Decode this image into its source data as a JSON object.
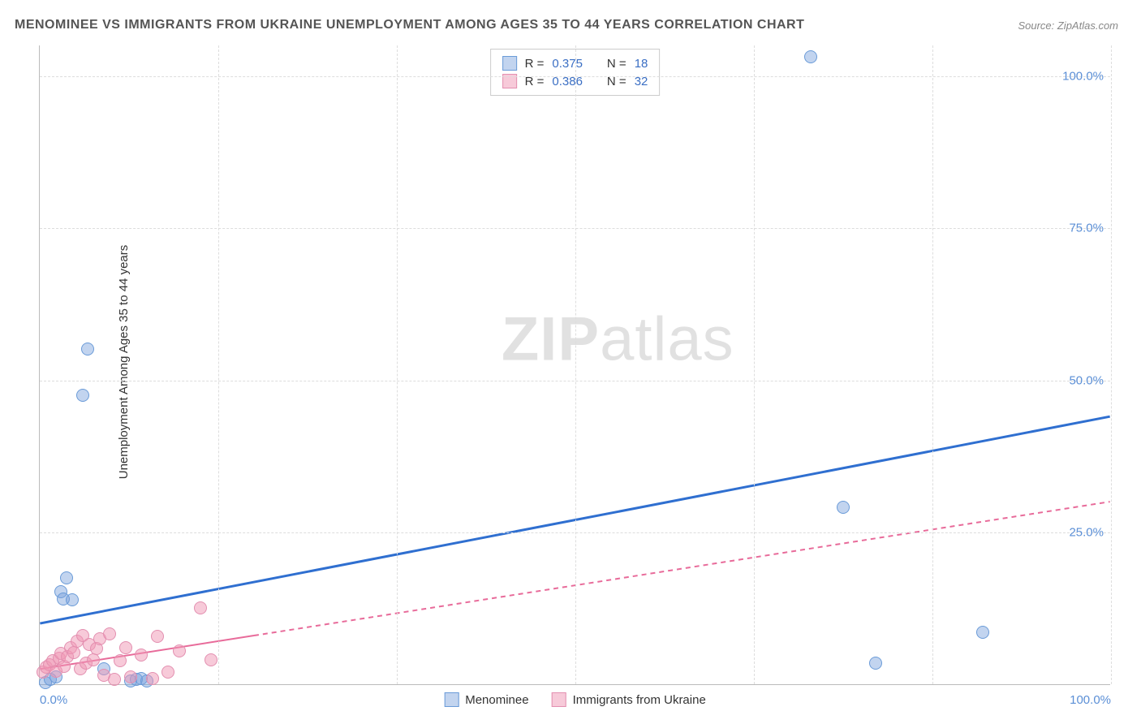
{
  "title": "MENOMINEE VS IMMIGRANTS FROM UKRAINE UNEMPLOYMENT AMONG AGES 35 TO 44 YEARS CORRELATION CHART",
  "source_label": "Source: ZipAtlas.com",
  "y_axis_label": "Unemployment Among Ages 35 to 44 years",
  "watermark_bold": "ZIP",
  "watermark_light": "atlas",
  "chart": {
    "type": "scatter",
    "xlim": [
      0,
      100
    ],
    "ylim": [
      0,
      105
    ],
    "x_ticks": [
      0,
      100
    ],
    "x_tick_labels": [
      "0.0%",
      "100.0%"
    ],
    "y_ticks": [
      25,
      50,
      75,
      100
    ],
    "y_tick_labels": [
      "25.0%",
      "50.0%",
      "75.0%",
      "100.0%"
    ],
    "v_grid_positions": [
      16.67,
      33.33,
      50,
      66.67,
      83.33,
      100
    ],
    "background_color": "#ffffff",
    "grid_color": "#dddddd",
    "axis_color": "#bbbbbb",
    "series": [
      {
        "name": "Menominee",
        "color_fill": "rgba(120,160,220,0.45)",
        "color_stroke": "#6a9bd8",
        "marker_radius": 8,
        "r_value": "0.375",
        "n_value": "18",
        "regression": {
          "x1": 0,
          "y1": 10,
          "x2": 100,
          "y2": 44,
          "color": "#2f6fd0",
          "width": 3,
          "dash": "none",
          "solid_until_x": 100
        },
        "points": [
          [
            0.5,
            0.3
          ],
          [
            1.0,
            0.8
          ],
          [
            1.5,
            1.2
          ],
          [
            2.0,
            15.2
          ],
          [
            2.2,
            14.0
          ],
          [
            2.5,
            17.5
          ],
          [
            3.0,
            13.8
          ],
          [
            4.0,
            47.5
          ],
          [
            4.5,
            55.0
          ],
          [
            6.0,
            2.5
          ],
          [
            8.5,
            0.5
          ],
          [
            9.0,
            0.8
          ],
          [
            9.5,
            1.0
          ],
          [
            10.0,
            0.6
          ],
          [
            72.0,
            103.0
          ],
          [
            75.0,
            29.0
          ],
          [
            78.0,
            3.5
          ],
          [
            88.0,
            8.5
          ]
        ]
      },
      {
        "name": "Immigrants from Ukraine",
        "color_fill": "rgba(240,150,180,0.50)",
        "color_stroke": "#e38fb0",
        "marker_radius": 8,
        "r_value": "0.386",
        "n_value": "32",
        "regression": {
          "x1": 0,
          "y1": 2.5,
          "x2": 100,
          "y2": 30,
          "color": "#e86b9a",
          "width": 2,
          "dash": "6,5",
          "solid_until_x": 20
        },
        "points": [
          [
            0.3,
            2.0
          ],
          [
            0.6,
            2.8
          ],
          [
            0.9,
            3.2
          ],
          [
            1.2,
            3.8
          ],
          [
            1.5,
            2.2
          ],
          [
            1.8,
            4.2
          ],
          [
            2.0,
            5.0
          ],
          [
            2.3,
            3.0
          ],
          [
            2.6,
            4.5
          ],
          [
            2.9,
            6.0
          ],
          [
            3.2,
            5.2
          ],
          [
            3.5,
            7.0
          ],
          [
            3.8,
            2.5
          ],
          [
            4.0,
            8.0
          ],
          [
            4.3,
            3.5
          ],
          [
            4.6,
            6.5
          ],
          [
            5.0,
            4.0
          ],
          [
            5.3,
            5.8
          ],
          [
            5.6,
            7.5
          ],
          [
            6.0,
            1.5
          ],
          [
            6.5,
            8.2
          ],
          [
            7.0,
            0.8
          ],
          [
            7.5,
            3.8
          ],
          [
            8.0,
            6.0
          ],
          [
            8.5,
            1.2
          ],
          [
            9.5,
            4.8
          ],
          [
            10.5,
            1.0
          ],
          [
            11.0,
            7.8
          ],
          [
            12.0,
            2.0
          ],
          [
            13.0,
            5.5
          ],
          [
            15.0,
            12.5
          ],
          [
            16.0,
            4.0
          ]
        ]
      }
    ]
  },
  "legend_top": {
    "r_label": "R =",
    "n_label": "N ="
  },
  "legend_bottom": [
    {
      "label": "Menominee",
      "fill": "rgba(120,160,220,0.45)",
      "stroke": "#6a9bd8"
    },
    {
      "label": "Immigrants from Ukraine",
      "fill": "rgba(240,150,180,0.50)",
      "stroke": "#e38fb0"
    }
  ]
}
